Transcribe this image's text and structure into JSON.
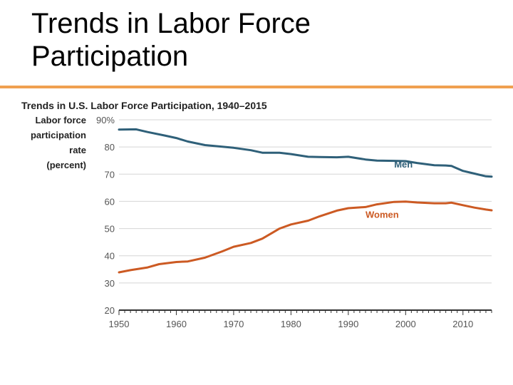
{
  "slide": {
    "title_line1": "Trends in Labor Force",
    "title_line2": "Participation"
  },
  "colors": {
    "accent_rule": "#f0a050",
    "men": "#2f6079",
    "women": "#cc5a23",
    "grid": "#d5d5d5"
  },
  "chart_data": {
    "type": "line",
    "title": "Trends in U.S. Labor Force Participation, 1940–2015",
    "ylabel_lines": [
      "Labor force",
      "participation",
      "rate",
      "(percent)"
    ],
    "ylim": [
      20,
      90
    ],
    "xlim": [
      1950,
      2015
    ],
    "yticks": [
      "90%",
      "80",
      "70",
      "60",
      "50",
      "40",
      "30",
      "20"
    ],
    "xticks": [
      "1950",
      "1960",
      "1970",
      "1980",
      "1990",
      "2000",
      "2010"
    ],
    "grid": true,
    "series": [
      {
        "name": "Men",
        "x": [
          1950,
          1953,
          1955,
          1958,
          1960,
          1962,
          1965,
          1968,
          1970,
          1973,
          1975,
          1978,
          1980,
          1983,
          1985,
          1988,
          1990,
          1993,
          1995,
          1998,
          2000,
          2002,
          2005,
          2007,
          2008,
          2010,
          2012,
          2014,
          2015
        ],
        "y": [
          86.4,
          86.5,
          85.5,
          84.2,
          83.3,
          82.0,
          80.7,
          80.1,
          79.7,
          78.8,
          77.9,
          77.9,
          77.4,
          76.4,
          76.3,
          76.2,
          76.4,
          75.4,
          75.0,
          74.9,
          74.8,
          74.1,
          73.3,
          73.2,
          73.0,
          71.2,
          70.2,
          69.2,
          69.1
        ]
      },
      {
        "name": "Women",
        "x": [
          1950,
          1952,
          1955,
          1957,
          1960,
          1962,
          1965,
          1968,
          1970,
          1973,
          1975,
          1978,
          1980,
          1983,
          1985,
          1988,
          1990,
          1993,
          1995,
          1998,
          2000,
          2002,
          2005,
          2007,
          2008,
          2010,
          2012,
          2014,
          2015
        ],
        "y": [
          33.9,
          34.7,
          35.7,
          36.9,
          37.7,
          37.9,
          39.3,
          41.6,
          43.3,
          44.7,
          46.3,
          50.0,
          51.5,
          52.9,
          54.5,
          56.6,
          57.5,
          57.9,
          58.9,
          59.8,
          59.9,
          59.6,
          59.3,
          59.3,
          59.5,
          58.6,
          57.7,
          57.0,
          56.7
        ]
      }
    ]
  }
}
